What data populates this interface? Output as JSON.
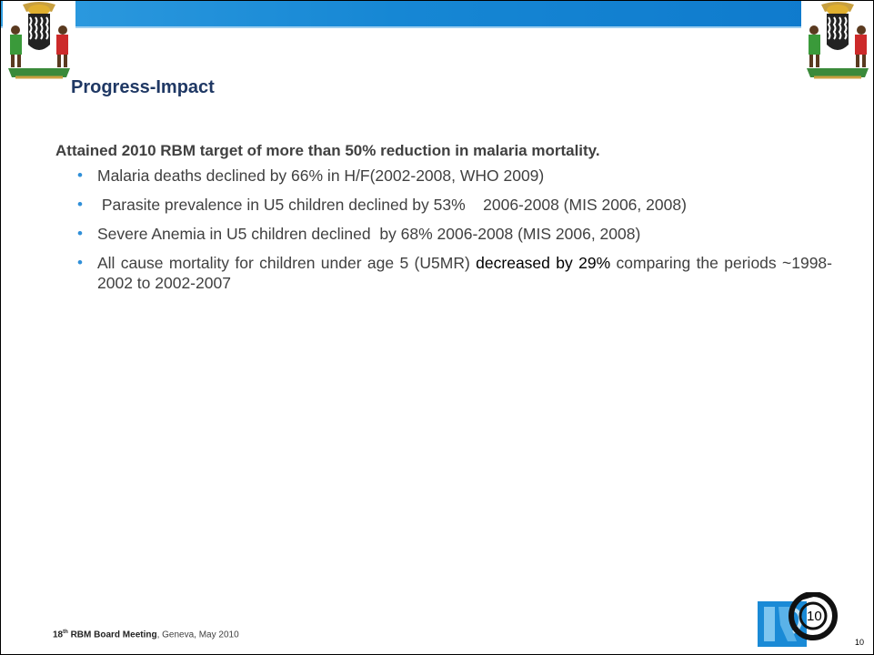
{
  "slide": {
    "title": "Progress-Impact",
    "lead": "Attained 2010 RBM target of more than 50% reduction in malaria mortality.",
    "bullets": [
      "Malaria deaths declined by 66% in H/F(2002-2008, WHO 2009)",
      " Parasite prevalence in U5 children declined by 53%    2006-2008 (MIS 2006, 2008)",
      "Severe Anemia in U5 children declined  by 68% 2006-2008 (MIS 2006, 2008)"
    ],
    "bullet4": {
      "before": "All cause mortality for children under age 5 (U5MR) ",
      "highlight": "decreased by 29%",
      "after": " comparing the periods ~1998-2002 to 2002-2007"
    }
  },
  "footer": {
    "ordinal_num": "18",
    "ordinal_sup": "th",
    "meeting": " RBM Board Meeting",
    "rest": ", Geneva, May 2010"
  },
  "logo": {
    "number": "10"
  },
  "page_number": "10",
  "colors": {
    "topbar": "#1687d4",
    "title": "#1f3864",
    "text": "#404040",
    "bullet": "#2f8fd8"
  },
  "icons": {
    "left": "zambia-coat-of-arms-icon",
    "right": "zambia-coat-of-arms-icon",
    "logo": "rbm-logo-icon"
  }
}
